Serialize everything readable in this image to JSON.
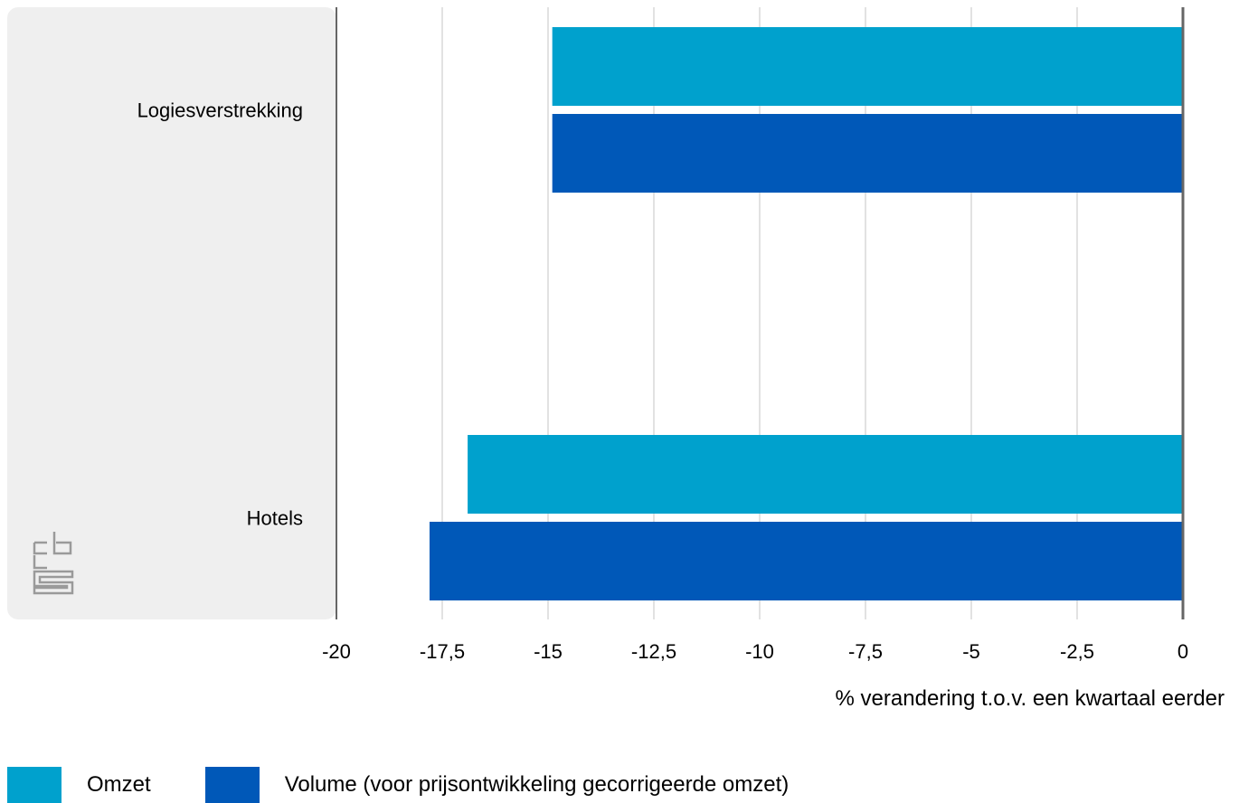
{
  "colors": {
    "omzet": "#00a1cd",
    "volume": "#0058b8",
    "label_panel": "#efefef",
    "grid": "#d9d9d9",
    "axis": "#666666",
    "logo": "#9a9a9a"
  },
  "logo": {
    "name": "cbs-logo-icon"
  },
  "chart_data": {
    "type": "bar",
    "orientation": "horizontal",
    "categories": [
      "Logiesverstrekking",
      "Hotels"
    ],
    "series": [
      {
        "name": "Omzet",
        "values": [
          -14.9,
          -16.9
        ]
      },
      {
        "name": "Volume (voor prijsontwikkeling gecorrigeerde omzet)",
        "values": [
          -14.9,
          -17.8
        ]
      }
    ],
    "xlim": [
      -20,
      0
    ],
    "xticks": [
      "-20",
      "-17,5",
      "-15",
      "-12,5",
      "-10",
      "-7,5",
      "-5",
      "-2,5",
      "0"
    ],
    "xlabel": "% verandering t.o.v. een kwartaal eerder",
    "grid": "vertical",
    "legend_position": "bottom-left"
  }
}
